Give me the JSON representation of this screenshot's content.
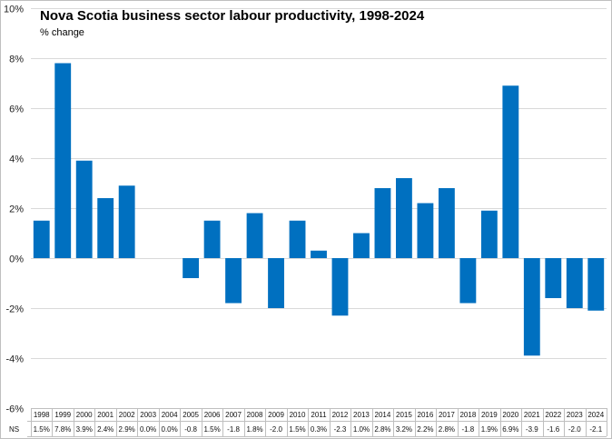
{
  "chart_data": {
    "type": "bar",
    "title": "Nova Scotia business sector labour productivity, 1998-2024",
    "ylabel": "% change",
    "xlabel": "",
    "ylim": [
      -6,
      10
    ],
    "y_tick_step": 2,
    "y_tick_labels": [
      "10%",
      "8%",
      "6%",
      "4%",
      "2%",
      "0%",
      "-2%",
      "-4%",
      "-6%"
    ],
    "series_label": "NS",
    "bar_color": "#0070C0",
    "grid_color": "#d9d9d9",
    "categories": [
      "1998",
      "1999",
      "2000",
      "2001",
      "2002",
      "2003",
      "2004",
      "2005",
      "2006",
      "2007",
      "2008",
      "2009",
      "2010",
      "2011",
      "2012",
      "2013",
      "2014",
      "2015",
      "2016",
      "2017",
      "2018",
      "2019",
      "2020",
      "2021",
      "2022",
      "2023",
      "2024"
    ],
    "values": [
      1.5,
      7.8,
      3.9,
      2.4,
      2.9,
      0.0,
      0.0,
      -0.8,
      1.5,
      -1.8,
      1.8,
      -2.0,
      1.5,
      0.3,
      -2.3,
      1.0,
      2.8,
      3.2,
      2.2,
      2.8,
      -1.8,
      1.9,
      6.9,
      -3.9,
      -1.6,
      -2.0,
      -2.1
    ],
    "value_labels": [
      "1.5%",
      "7.8%",
      "3.9%",
      "2.4%",
      "2.9%",
      "0.0%",
      "0.0%",
      "-0.8",
      "1.5%",
      "-1.8",
      "1.8%",
      "-2.0",
      "1.5%",
      "0.3%",
      "-2.3",
      "1.0%",
      "2.8%",
      "3.2%",
      "2.2%",
      "2.8%",
      "-1.8",
      "1.9%",
      "6.9%",
      "-3.9",
      "-1.6",
      "-2.0",
      "-2.1"
    ]
  }
}
